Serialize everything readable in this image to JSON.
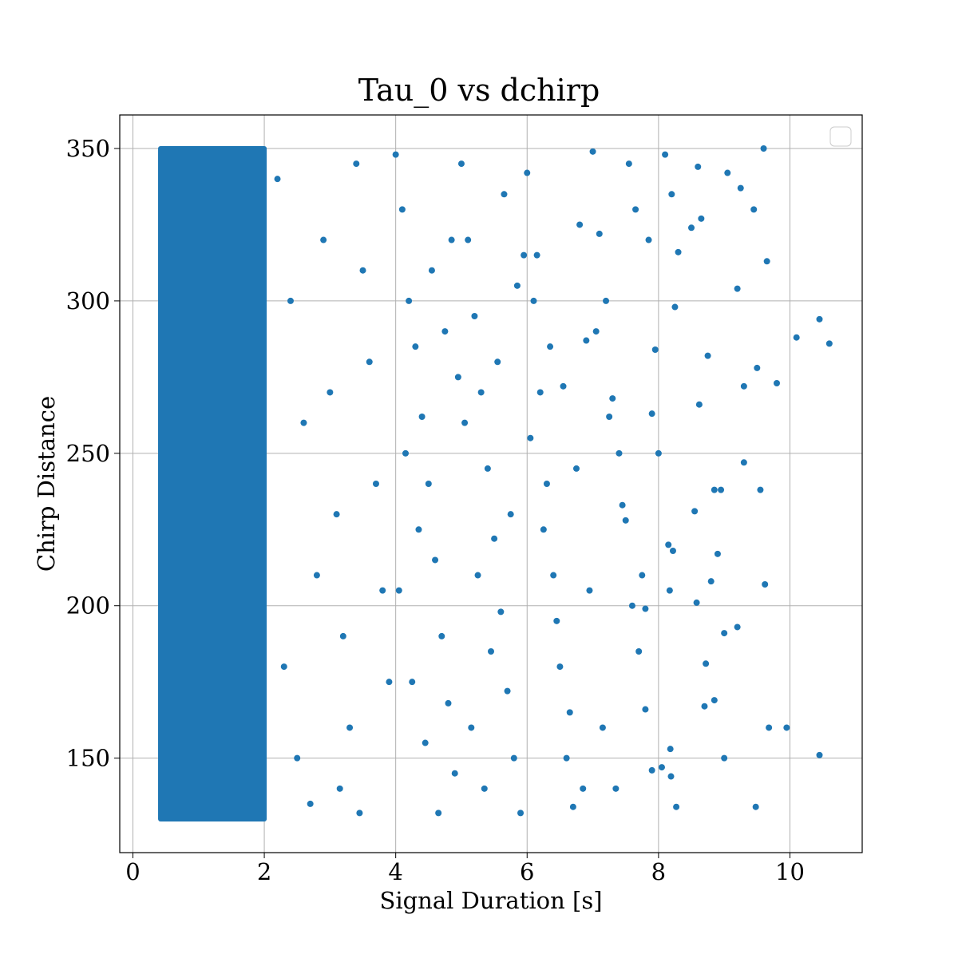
{
  "chart_data": {
    "type": "scatter",
    "title": "Tau_0 vs dchirp",
    "xlabel": "Signal Duration [s]",
    "ylabel": "Chirp Distance",
    "xlim": [
      -0.2,
      11.1
    ],
    "ylim": [
      119,
      361
    ],
    "x_ticks": [
      0,
      2,
      4,
      6,
      8,
      10
    ],
    "x_tick_labels": [
      "0",
      "2",
      "4",
      "6",
      "8",
      "10"
    ],
    "y_ticks": [
      150,
      200,
      250,
      300,
      350
    ],
    "y_tick_labels": [
      "150",
      "200",
      "250",
      "300",
      "350"
    ],
    "grid": true,
    "legend": "top-right (empty)",
    "marker_color": "#1f77b4",
    "dense_region": {
      "x_range": [
        0.42,
        2.0
      ],
      "y_range": [
        130,
        350
      ],
      "description": "points fully saturate the band from ~0.4 s to ~2 s"
    },
    "points": [
      [
        2.2,
        340
      ],
      [
        2.4,
        300
      ],
      [
        2.6,
        260
      ],
      [
        2.8,
        210
      ],
      [
        2.3,
        180
      ],
      [
        2.5,
        150
      ],
      [
        2.7,
        135
      ],
      [
        2.9,
        320
      ],
      [
        3.0,
        270
      ],
      [
        3.1,
        230
      ],
      [
        3.2,
        190
      ],
      [
        3.3,
        160
      ],
      [
        3.4,
        345
      ],
      [
        3.5,
        310
      ],
      [
        3.6,
        280
      ],
      [
        3.7,
        240
      ],
      [
        3.8,
        205
      ],
      [
        3.9,
        175
      ],
      [
        3.15,
        140
      ],
      [
        3.45,
        132
      ],
      [
        4.0,
        348
      ],
      [
        4.1,
        330
      ],
      [
        4.2,
        300
      ],
      [
        4.3,
        285
      ],
      [
        4.4,
        262
      ],
      [
        4.5,
        240
      ],
      [
        4.6,
        215
      ],
      [
        4.7,
        190
      ],
      [
        4.8,
        168
      ],
      [
        4.9,
        145
      ],
      [
        4.05,
        205
      ],
      [
        4.25,
        175
      ],
      [
        4.45,
        155
      ],
      [
        4.65,
        132
      ],
      [
        4.85,
        320
      ],
      [
        4.95,
        275
      ],
      [
        4.15,
        250
      ],
      [
        4.35,
        225
      ],
      [
        4.55,
        310
      ],
      [
        4.75,
        290
      ],
      [
        5.0,
        345
      ],
      [
        5.1,
        320
      ],
      [
        5.2,
        295
      ],
      [
        5.3,
        270
      ],
      [
        5.4,
        245
      ],
      [
        5.5,
        222
      ],
      [
        5.6,
        198
      ],
      [
        5.7,
        172
      ],
      [
        5.8,
        150
      ],
      [
        5.9,
        132
      ],
      [
        5.05,
        260
      ],
      [
        5.25,
        210
      ],
      [
        5.45,
        185
      ],
      [
        5.65,
        335
      ],
      [
        5.85,
        305
      ],
      [
        5.15,
        160
      ],
      [
        5.35,
        140
      ],
      [
        5.55,
        280
      ],
      [
        5.75,
        230
      ],
      [
        5.95,
        315
      ],
      [
        6.0,
        342
      ],
      [
        6.1,
        300
      ],
      [
        6.2,
        270
      ],
      [
        6.3,
        240
      ],
      [
        6.4,
        210
      ],
      [
        6.5,
        180
      ],
      [
        6.6,
        150
      ],
      [
        6.7,
        134
      ],
      [
        6.8,
        325
      ],
      [
        6.9,
        287
      ],
      [
        6.05,
        255
      ],
      [
        6.25,
        225
      ],
      [
        6.45,
        195
      ],
      [
        6.65,
        165
      ],
      [
        6.85,
        140
      ],
      [
        6.15,
        315
      ],
      [
        6.35,
        285
      ],
      [
        6.55,
        272
      ],
      [
        6.75,
        245
      ],
      [
        6.95,
        205
      ],
      [
        7.0,
        349
      ],
      [
        7.1,
        322
      ],
      [
        7.2,
        300
      ],
      [
        7.3,
        268
      ],
      [
        7.4,
        250
      ],
      [
        7.5,
        228
      ],
      [
        7.6,
        200
      ],
      [
        7.7,
        185
      ],
      [
        7.8,
        166
      ],
      [
        7.9,
        146
      ],
      [
        7.05,
        290
      ],
      [
        7.25,
        262
      ],
      [
        7.45,
        233
      ],
      [
        7.65,
        330
      ],
      [
        7.85,
        320
      ],
      [
        7.15,
        160
      ],
      [
        7.35,
        140
      ],
      [
        7.55,
        345
      ],
      [
        7.75,
        210
      ],
      [
        7.95,
        284
      ],
      [
        8.1,
        348
      ],
      [
        8.2,
        335
      ],
      [
        8.15,
        220
      ],
      [
        8.22,
        218
      ],
      [
        8.3,
        316
      ],
      [
        8.17,
        205
      ],
      [
        8.18,
        153
      ],
      [
        8.05,
        147
      ],
      [
        8.19,
        144
      ],
      [
        8.27,
        134
      ],
      [
        8.5,
        324
      ],
      [
        8.6,
        344
      ],
      [
        8.65,
        327
      ],
      [
        8.75,
        282
      ],
      [
        8.9,
        217
      ],
      [
        9.0,
        191
      ],
      [
        8.8,
        208
      ],
      [
        8.85,
        238
      ],
      [
        8.55,
        231
      ],
      [
        8.58,
        201
      ],
      [
        8.62,
        266
      ],
      [
        8.72,
        181
      ],
      [
        9.05,
        342
      ],
      [
        9.2,
        304
      ],
      [
        9.25,
        337
      ],
      [
        9.3,
        272
      ],
      [
        9.45,
        330
      ],
      [
        9.5,
        278
      ],
      [
        9.55,
        238
      ],
      [
        9.6,
        350
      ],
      [
        9.62,
        207
      ],
      [
        9.65,
        313
      ],
      [
        9.68,
        160
      ],
      [
        9.8,
        273
      ],
      [
        9.0,
        150
      ],
      [
        9.2,
        193
      ],
      [
        9.3,
        247
      ],
      [
        9.48,
        134
      ],
      [
        9.95,
        160
      ],
      [
        10.1,
        288
      ],
      [
        10.45,
        294
      ],
      [
        10.6,
        286
      ],
      [
        10.45,
        151
      ],
      [
        8.95,
        238
      ],
      [
        8.85,
        169
      ],
      [
        8.7,
        167
      ],
      [
        8.25,
        298
      ],
      [
        8.0,
        250
      ],
      [
        7.8,
        199
      ],
      [
        7.9,
        263
      ]
    ]
  }
}
